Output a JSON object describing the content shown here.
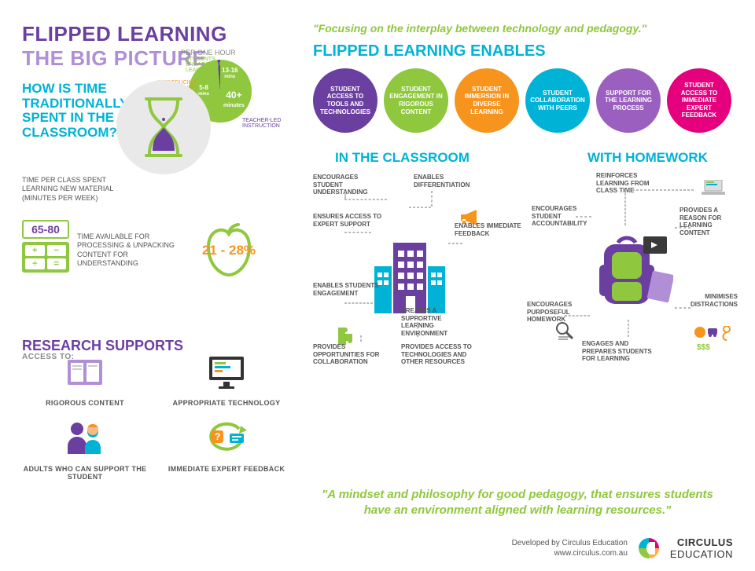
{
  "colors": {
    "purple": "#6b3fa0",
    "lightPurple": "#b18fd6",
    "cyan": "#00b3d6",
    "green": "#8fc73e",
    "orange": "#f7941e",
    "magenta": "#e5007e",
    "grey": "#555555",
    "bgGrey": "#e9e9e9"
  },
  "left": {
    "title1": "FLIPPED LEARNING",
    "title2": "THE BIG PICTURE",
    "question": "HOW IS TIME TRADITIONALLY SPENT IN THE CLASSROOM?",
    "perHour": "PER ONE HOUR",
    "pie": {
      "slices": [
        {
          "label": "STUDENTS ENGAGING WITH LEARNING",
          "value": "13-16\nmins",
          "color": "#8fc73e",
          "start": 270,
          "end": 355
        },
        {
          "label": "INTRODUCING & CLOSING ACTIVITIES",
          "value": "5-8\nmins",
          "color": "#f7941e",
          "start": 240,
          "end": 270
        },
        {
          "label": "TEACHER-LED INSTRUCTION",
          "value": "40+\nminutes",
          "color": "#6b3fa0",
          "start": -5,
          "end": 240
        }
      ]
    },
    "timePerClass": "TIME PER CLASS SPENT LEARNING NEW MATERIAL (MINUTES PER WEEK)",
    "calcValue": "65-80",
    "timeAvailable": "TIME AVAILABLE FOR PROCESSING & UNPACKING CONTENT FOR UNDERSTANDING",
    "appleValue": "21 - 28%",
    "research": {
      "title": "RESEARCH SUPPORTS",
      "accessTo": "ACCESS TO:",
      "items": [
        {
          "label": "RIGOROUS CONTENT",
          "icon": "book"
        },
        {
          "label": "APPROPRIATE TECHNOLOGY",
          "icon": "monitor"
        },
        {
          "label": "ADULTS WHO CAN SUPPORT THE STUDENT",
          "icon": "people"
        },
        {
          "label": "IMMEDIATE EXPERT FEEDBACK",
          "icon": "feedback"
        }
      ]
    }
  },
  "right": {
    "tagline": "\"Focusing on the interplay between technology and pedagogy.\"",
    "enablesTitle": "FLIPPED LEARNING ENABLES",
    "circles": [
      {
        "text": "STUDENT ACCESS TO TOOLS AND TECHNOLOGIES",
        "color": "#6b3fa0"
      },
      {
        "text": "STUDENT ENGAGEMENT IN RIGOROUS CONTENT",
        "color": "#8fc73e"
      },
      {
        "text": "STUDENT IMMERSION IN DIVERSE LEARNING",
        "color": "#f7941e"
      },
      {
        "text": "STUDENT COLLABORATION WITH PEERS",
        "color": "#00b3d6"
      },
      {
        "text": "SUPPORT FOR THE LEARNING PROCESS",
        "color": "#9b5fc0"
      },
      {
        "text": "STUDENT ACCESS TO IMMEDIATE EXPERT FEEDBACK",
        "color": "#e5007e"
      }
    ],
    "col1Title": "IN THE CLASSROOM",
    "col2Title": "WITH HOMEWORK",
    "classroomBenefits": [
      "ENCOURAGES STUDENT UNDERSTANDING",
      "ENABLES DIFFERENTIATION",
      "ENSURES ACCESS TO EXPERT SUPPORT",
      "ENABLES IMMEDIATE FEEDBACK",
      "ENABLES STUDENTS ENGAGEMENT",
      "CREATES A SUPPORTIVE LEARNING ENVIRONMENT",
      "PROVIDES OPPORTUNITIES FOR COLLABORATION",
      "PROVIDES ACCESS TO TECHNOLOGIES AND OTHER RESOURCES"
    ],
    "homeworkBenefits": [
      "REINFORCES LEARNING FROM CLASS TIME",
      "ENCOURAGES STUDENT ACCOUNTABILITY",
      "PROVIDES A REASON FOR LEARNING CONTENT",
      "ENCOURAGES PURPOSEFUL HOMEWORK",
      "MINIMISES DISTRACTIONS",
      "ENGAGES AND PREPARES STUDENTS FOR LEARNING"
    ],
    "quote": "\"A mindset and philosophy for good pedagogy, that ensures students have an environment aligned with learning resources.\""
  },
  "footer": {
    "line1": "Developed by Circulus Education",
    "line2": "www.circulus.com.au",
    "brand1": "CIRCULUS",
    "brand2": "EDUCATION"
  }
}
